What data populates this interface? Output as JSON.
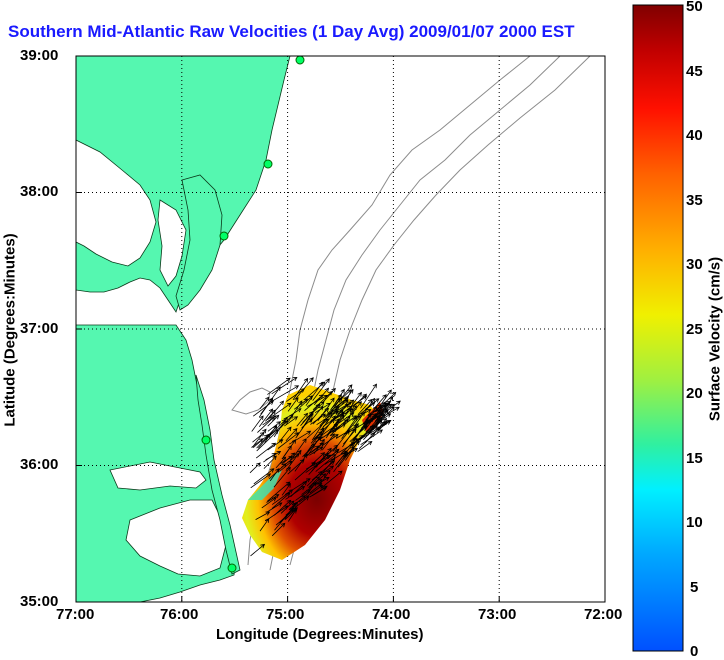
{
  "title": "Southern Mid-Atlantic Raw Velocities (1 Day Avg) 2009/01/07 2000 EST",
  "x_axis": {
    "label": "Longitude (Degrees:Minutes)",
    "ticks": [
      "77:00",
      "76:00",
      "75:00",
      "74:00",
      "73:00",
      "72:00"
    ]
  },
  "y_axis": {
    "label": "Latitude (Degrees:Minutes)",
    "ticks": [
      "39:00",
      "38:00",
      "37:00",
      "36:00",
      "35:00"
    ]
  },
  "colorbar": {
    "label": "Surface Velocity (cm/s)",
    "ticks": [
      "50",
      "45",
      "40",
      "35",
      "30",
      "25",
      "20",
      "15",
      "10",
      "5",
      "0"
    ],
    "min": 0,
    "max": 50
  },
  "map": {
    "lon_range": [
      -77,
      -72
    ],
    "lat_range": [
      35,
      39
    ],
    "land_color": "#55f7b0",
    "grid": "dotted",
    "stations_count": 5
  }
}
